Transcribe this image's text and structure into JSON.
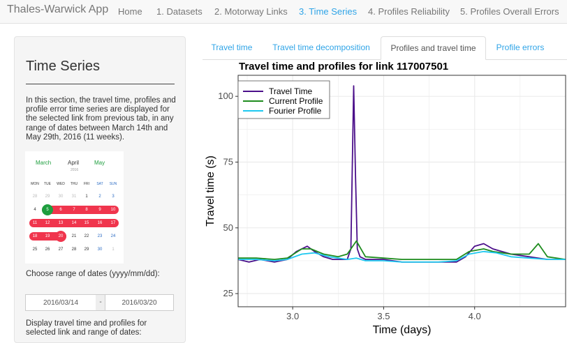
{
  "navbar": {
    "brand": "Thales-Warwick App",
    "items": [
      {
        "label": "Home",
        "active": false
      },
      {
        "label": "1. Datasets",
        "active": false
      },
      {
        "label": "2. Motorway Links",
        "active": false
      },
      {
        "label": "3. Time Series",
        "active": true
      },
      {
        "label": "4. Profiles Reliability",
        "active": false
      },
      {
        "label": "5. Profiles Overall Errors",
        "active": false
      }
    ]
  },
  "sidebar": {
    "title": "Time Series",
    "description": "In this section, the travel time, profiles and profile error time series are displayed for the selected link from previous tab, in any range of dates between March 14th and May 29th, 2016 (11 weeks).",
    "date_label": "Choose range of dates (yyyy/mm/dd):",
    "date_start": "2016/03/14",
    "date_separator": "-",
    "date_end": "2016/03/20",
    "display_label": "Display travel time and profiles for selected link and range of dates:"
  },
  "calendar": {
    "prev_month": "March",
    "current_month": "April",
    "next_month": "May",
    "year": "2016",
    "weekdays": [
      "MON",
      "TUE",
      "WED",
      "THU",
      "FRI",
      "SAT",
      "SUN"
    ],
    "weeks": [
      [
        "28",
        "29",
        "30",
        "31",
        "1",
        "2",
        "3"
      ],
      [
        "4",
        "5",
        "6",
        "7",
        "8",
        "9",
        "10"
      ],
      [
        "11",
        "12",
        "13",
        "14",
        "15",
        "16",
        "17"
      ],
      [
        "18",
        "19",
        "20",
        "21",
        "22",
        "23",
        "24"
      ],
      [
        "25",
        "26",
        "27",
        "28",
        "29",
        "30",
        "1"
      ]
    ],
    "colors": {
      "range": "#f0354d",
      "start": "#1e9e3e",
      "month_link": "#1e9e3e",
      "weekend": "#2b6cc4"
    }
  },
  "tabs": [
    {
      "label": "Travel time",
      "active": false
    },
    {
      "label": "Travel time decomposition",
      "active": false
    },
    {
      "label": "Profiles and travel time",
      "active": true
    },
    {
      "label": "Profile errors",
      "active": false
    }
  ],
  "chart_data": {
    "type": "line",
    "title": "Travel time and profiles for link 117007501",
    "xlabel": "Time (days)",
    "ylabel": "Travel time (s)",
    "xlim": [
      2.7,
      4.5
    ],
    "ylim": [
      20,
      108
    ],
    "xticks": [
      3.0,
      3.5,
      4.0
    ],
    "yticks": [
      25,
      50,
      75,
      100
    ],
    "grid": true,
    "legend_position": "top-left",
    "series": [
      {
        "name": "Travel Time",
        "color": "#4b0f8a",
        "x": [
          2.7,
          2.76,
          2.82,
          2.9,
          2.97,
          3.02,
          3.08,
          3.12,
          3.17,
          3.22,
          3.27,
          3.3,
          3.32,
          3.335,
          3.345,
          3.355,
          3.37,
          3.4,
          3.5,
          3.6,
          3.7,
          3.8,
          3.9,
          3.95,
          4.0,
          4.05,
          4.1,
          4.15,
          4.2,
          4.3,
          4.4,
          4.5
        ],
        "y": [
          38,
          37,
          38,
          37,
          38,
          41,
          43,
          41,
          39,
          38,
          38,
          38,
          42,
          104,
          70,
          42,
          39,
          38,
          38,
          37,
          37,
          37,
          37,
          39,
          43,
          44,
          42,
          41,
          40,
          39,
          38,
          38
        ]
      },
      {
        "name": "Current Profile",
        "color": "#1e8c1e",
        "x": [
          2.7,
          2.8,
          2.9,
          2.97,
          3.05,
          3.1,
          3.17,
          3.25,
          3.3,
          3.35,
          3.4,
          3.5,
          3.6,
          3.7,
          3.8,
          3.9,
          3.97,
          4.05,
          4.1,
          4.2,
          4.3,
          4.35,
          4.4,
          4.5
        ],
        "y": [
          38.5,
          38.5,
          38,
          38.5,
          42,
          42,
          40,
          39,
          40,
          45,
          39,
          38.5,
          38,
          38,
          38,
          38,
          41,
          42,
          41,
          40,
          40,
          44,
          39,
          38
        ]
      },
      {
        "name": "Fourier Profile",
        "color": "#1ec8f0",
        "x": [
          2.7,
          2.8,
          2.9,
          2.97,
          3.05,
          3.12,
          3.2,
          3.3,
          3.35,
          3.4,
          3.5,
          3.6,
          3.7,
          3.8,
          3.9,
          3.97,
          4.05,
          4.12,
          4.2,
          4.3,
          4.4,
          4.5
        ],
        "y": [
          38,
          38,
          37.5,
          38,
          40,
          40.5,
          39,
          38,
          38.5,
          37.5,
          37.5,
          37,
          37,
          37,
          37.5,
          40,
          41,
          40.5,
          39,
          38.5,
          38,
          38
        ]
      }
    ]
  }
}
